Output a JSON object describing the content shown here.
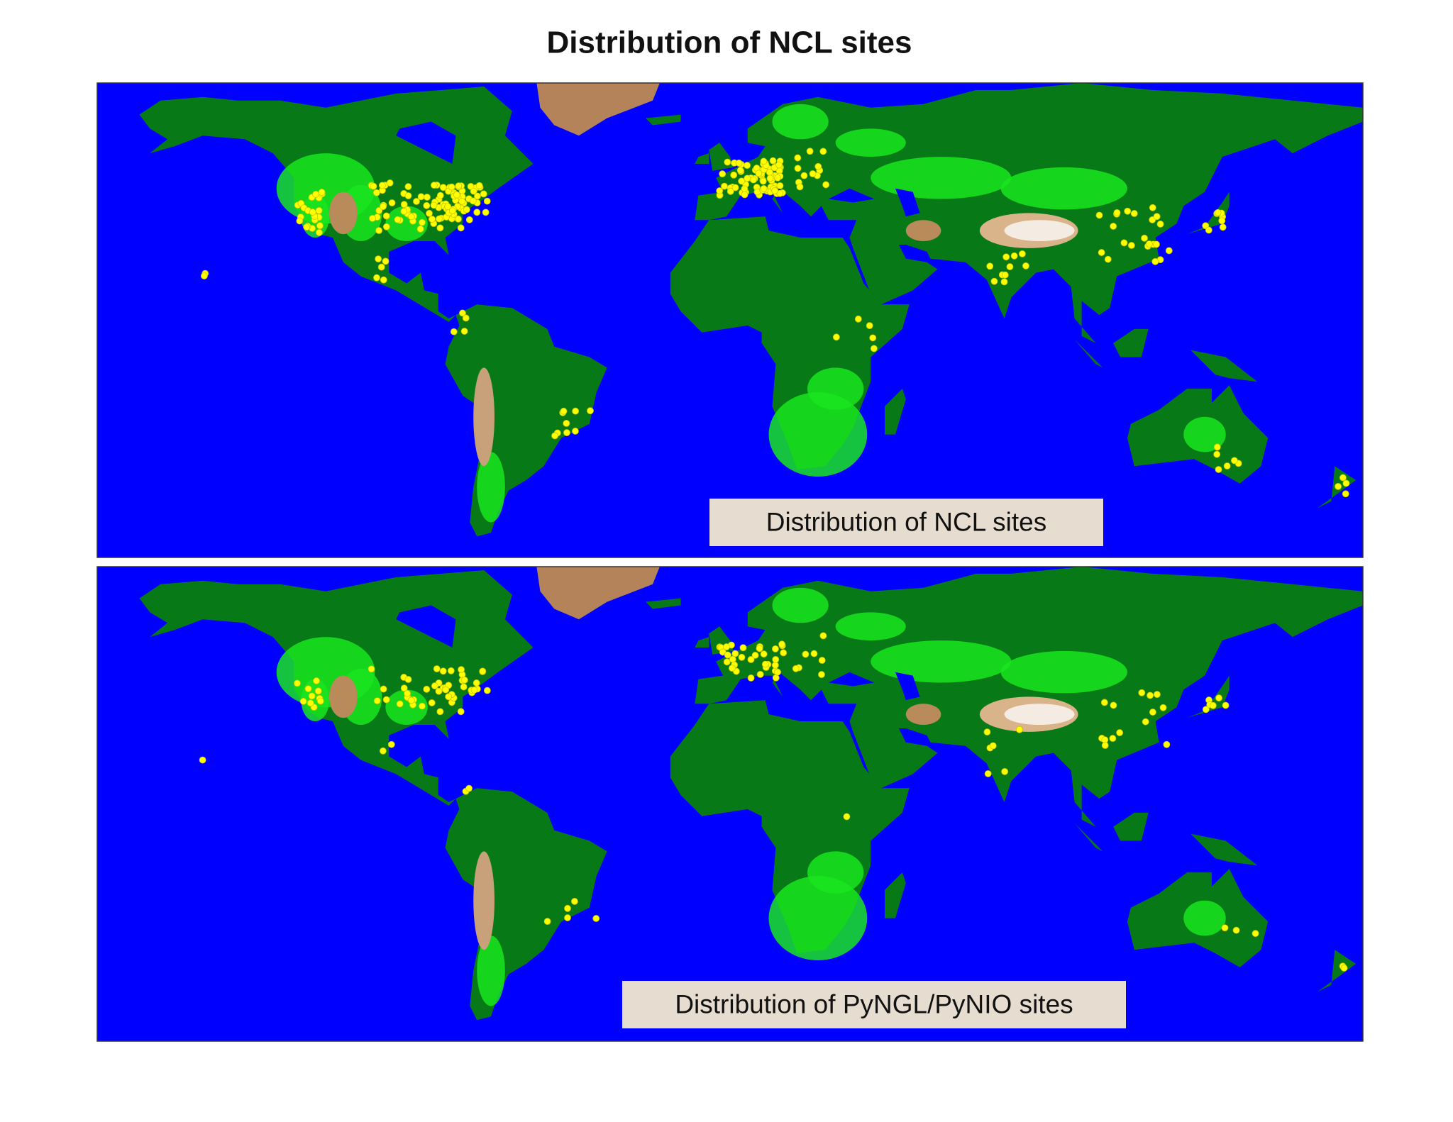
{
  "title": "Distribution of NCL sites",
  "panels": [
    {
      "label": "Distribution of NCL sites"
    },
    {
      "label": "Distribution of PyNGL/PyNIO sites"
    }
  ]
}
